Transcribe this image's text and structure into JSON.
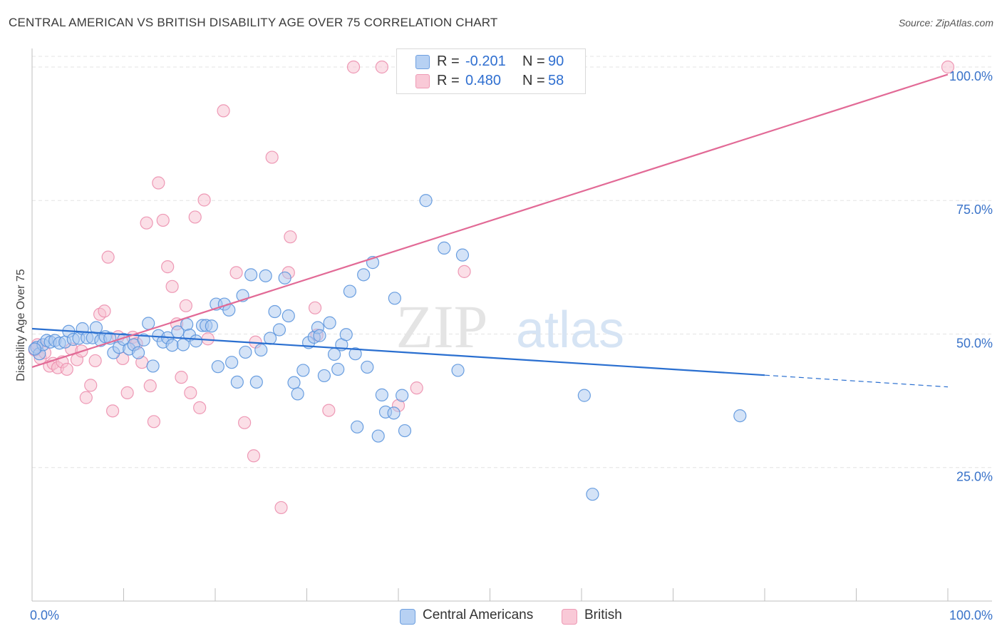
{
  "header": {
    "title": "CENTRAL AMERICAN VS BRITISH DISABILITY AGE OVER 75 CORRELATION CHART",
    "source": "Source: ZipAtlas.com"
  },
  "legend": {
    "rows": [
      {
        "r_label": "R =",
        "r_value": "-0.201",
        "n_label": "N =",
        "n_value": "90"
      },
      {
        "r_label": "R =",
        "r_value": "0.480",
        "n_label": "N =",
        "n_value": "58"
      }
    ]
  },
  "bottom_legend": {
    "items": [
      {
        "label": "Central Americans"
      },
      {
        "label": "British"
      }
    ]
  },
  "watermark": {
    "zip": "ZIP",
    "atlas": "atlas"
  },
  "colors": {
    "blue_fill": "#a9c8f0",
    "blue_stroke": "#5b95dd",
    "blue_line": "#2a6fd0",
    "pink_fill": "#f7bfd0",
    "pink_stroke": "#ec8fae",
    "pink_line": "#e26a96",
    "tick_label": "#3a73c9",
    "grid": "#e3e3e3"
  },
  "chart_data": {
    "type": "scatter",
    "title": "CENTRAL AMERICAN VS BRITISH DISABILITY AGE OVER 75 CORRELATION CHART",
    "xlabel": "",
    "ylabel": "Disability Age Over 75",
    "xlim": [
      0,
      100
    ],
    "ylim": [
      0,
      102
    ],
    "x_tick_labels": [
      "0.0%",
      "100.0%"
    ],
    "y_ticks": [
      25,
      50,
      75,
      100
    ],
    "y_tick_labels": [
      "25.0%",
      "50.0%",
      "75.0%",
      "100.0%"
    ],
    "grid": true,
    "legend_position": "top-center",
    "series": [
      {
        "name": "Central Americans",
        "color": "#a9c8f0",
        "trend": {
          "x": [
            0,
            80,
            100
          ],
          "y": [
            51.0,
            42.3,
            40.1
          ],
          "solid_until": 80
        },
        "points": [
          {
            "x": 0.5,
            "y": 47.5
          },
          {
            "x": 0.8,
            "y": 46.3
          },
          {
            "x": 1.2,
            "y": 48.0
          },
          {
            "x": 1.6,
            "y": 48.8
          },
          {
            "x": 2.0,
            "y": 48.5
          },
          {
            "x": 2.5,
            "y": 48.8
          },
          {
            "x": 3.0,
            "y": 48.3
          },
          {
            "x": 3.6,
            "y": 48.5
          },
          {
            "x": 4.0,
            "y": 50.5
          },
          {
            "x": 4.5,
            "y": 49.0
          },
          {
            "x": 5.1,
            "y": 49.2
          },
          {
            "x": 5.5,
            "y": 51.0
          },
          {
            "x": 6.0,
            "y": 49.3
          },
          {
            "x": 6.6,
            "y": 49.3
          },
          {
            "x": 7.0,
            "y": 51.2
          },
          {
            "x": 7.5,
            "y": 48.8
          },
          {
            "x": 8.0,
            "y": 49.5
          },
          {
            "x": 8.5,
            "y": 49.2
          },
          {
            "x": 8.9,
            "y": 46.5
          },
          {
            "x": 9.5,
            "y": 47.5
          },
          {
            "x": 10.0,
            "y": 49.0
          },
          {
            "x": 10.6,
            "y": 47.2
          },
          {
            "x": 11.1,
            "y": 48.0
          },
          {
            "x": 11.6,
            "y": 46.5
          },
          {
            "x": 12.2,
            "y": 48.9
          },
          {
            "x": 12.7,
            "y": 52.0
          },
          {
            "x": 13.2,
            "y": 44.0
          },
          {
            "x": 13.8,
            "y": 49.7
          },
          {
            "x": 14.3,
            "y": 48.5
          },
          {
            "x": 14.8,
            "y": 49.3
          },
          {
            "x": 15.3,
            "y": 47.9
          },
          {
            "x": 15.9,
            "y": 50.4
          },
          {
            "x": 16.5,
            "y": 48.0
          },
          {
            "x": 16.9,
            "y": 51.8
          },
          {
            "x": 17.2,
            "y": 49.8
          },
          {
            "x": 17.9,
            "y": 48.7
          },
          {
            "x": 18.6,
            "y": 51.6
          },
          {
            "x": 19.0,
            "y": 51.6
          },
          {
            "x": 19.6,
            "y": 51.5
          },
          {
            "x": 20.1,
            "y": 55.6
          },
          {
            "x": 20.3,
            "y": 43.9
          },
          {
            "x": 21.0,
            "y": 55.6
          },
          {
            "x": 21.5,
            "y": 54.5
          },
          {
            "x": 21.8,
            "y": 44.7
          },
          {
            "x": 22.4,
            "y": 41.0
          },
          {
            "x": 23.0,
            "y": 57.2
          },
          {
            "x": 23.3,
            "y": 46.6
          },
          {
            "x": 23.9,
            "y": 61.1
          },
          {
            "x": 24.5,
            "y": 41.0
          },
          {
            "x": 25.0,
            "y": 47.0
          },
          {
            "x": 25.5,
            "y": 60.9
          },
          {
            "x": 26.0,
            "y": 49.2
          },
          {
            "x": 26.5,
            "y": 54.2
          },
          {
            "x": 27.0,
            "y": 50.8
          },
          {
            "x": 27.6,
            "y": 60.5
          },
          {
            "x": 28.0,
            "y": 53.4
          },
          {
            "x": 28.6,
            "y": 40.9
          },
          {
            "x": 29.0,
            "y": 38.8
          },
          {
            "x": 29.6,
            "y": 43.2
          },
          {
            "x": 30.2,
            "y": 48.4
          },
          {
            "x": 30.8,
            "y": 49.4
          },
          {
            "x": 31.2,
            "y": 51.2
          },
          {
            "x": 31.4,
            "y": 49.7
          },
          {
            "x": 31.9,
            "y": 42.2
          },
          {
            "x": 32.5,
            "y": 52.1
          },
          {
            "x": 33.0,
            "y": 46.2
          },
          {
            "x": 33.4,
            "y": 43.4
          },
          {
            "x": 33.8,
            "y": 48.0
          },
          {
            "x": 34.3,
            "y": 49.9
          },
          {
            "x": 34.7,
            "y": 58.0
          },
          {
            "x": 35.3,
            "y": 46.3
          },
          {
            "x": 35.5,
            "y": 32.6
          },
          {
            "x": 36.2,
            "y": 61.1
          },
          {
            "x": 36.6,
            "y": 43.8
          },
          {
            "x": 37.2,
            "y": 63.4
          },
          {
            "x": 37.8,
            "y": 30.9
          },
          {
            "x": 38.2,
            "y": 38.6
          },
          {
            "x": 38.6,
            "y": 35.4
          },
          {
            "x": 39.5,
            "y": 35.2
          },
          {
            "x": 39.6,
            "y": 56.7
          },
          {
            "x": 40.4,
            "y": 38.5
          },
          {
            "x": 40.7,
            "y": 31.9
          },
          {
            "x": 43.0,
            "y": 75.0
          },
          {
            "x": 45.0,
            "y": 66.1
          },
          {
            "x": 46.5,
            "y": 43.2
          },
          {
            "x": 47.0,
            "y": 64.8
          },
          {
            "x": 60.3,
            "y": 38.5
          },
          {
            "x": 61.2,
            "y": 20.0
          },
          {
            "x": 77.3,
            "y": 34.7
          },
          {
            "x": 0.3,
            "y": 47.2
          }
        ]
      },
      {
        "name": "British",
        "color": "#f7bfd0",
        "trend": {
          "x": [
            0,
            100
          ],
          "y": [
            43.8,
            98.6
          ],
          "solid_until": 100
        },
        "points": [
          {
            "x": 0.3,
            "y": 47.0
          },
          {
            "x": 0.9,
            "y": 45.5
          },
          {
            "x": 1.4,
            "y": 46.5
          },
          {
            "x": 1.9,
            "y": 44.0
          },
          {
            "x": 2.3,
            "y": 44.5
          },
          {
            "x": 2.8,
            "y": 43.7
          },
          {
            "x": 3.3,
            "y": 44.8
          },
          {
            "x": 3.8,
            "y": 43.4
          },
          {
            "x": 4.3,
            "y": 47.2
          },
          {
            "x": 4.9,
            "y": 45.2
          },
          {
            "x": 5.4,
            "y": 46.8
          },
          {
            "x": 5.9,
            "y": 38.1
          },
          {
            "x": 6.4,
            "y": 40.4
          },
          {
            "x": 6.9,
            "y": 45.0
          },
          {
            "x": 7.4,
            "y": 53.7
          },
          {
            "x": 7.9,
            "y": 54.3
          },
          {
            "x": 8.3,
            "y": 64.4
          },
          {
            "x": 8.8,
            "y": 35.6
          },
          {
            "x": 9.4,
            "y": 49.5
          },
          {
            "x": 9.9,
            "y": 45.4
          },
          {
            "x": 10.4,
            "y": 39.0
          },
          {
            "x": 11.0,
            "y": 49.4
          },
          {
            "x": 11.4,
            "y": 48.2
          },
          {
            "x": 12.0,
            "y": 44.7
          },
          {
            "x": 12.5,
            "y": 70.8
          },
          {
            "x": 12.9,
            "y": 40.3
          },
          {
            "x": 13.3,
            "y": 33.6
          },
          {
            "x": 13.8,
            "y": 78.3
          },
          {
            "x": 14.3,
            "y": 71.3
          },
          {
            "x": 14.8,
            "y": 62.6
          },
          {
            "x": 15.3,
            "y": 58.9
          },
          {
            "x": 15.8,
            "y": 51.9
          },
          {
            "x": 16.3,
            "y": 41.9
          },
          {
            "x": 16.8,
            "y": 55.3
          },
          {
            "x": 17.3,
            "y": 39.0
          },
          {
            "x": 17.8,
            "y": 71.9
          },
          {
            "x": 18.3,
            "y": 36.2
          },
          {
            "x": 18.8,
            "y": 75.1
          },
          {
            "x": 19.2,
            "y": 49.1
          },
          {
            "x": 20.9,
            "y": 91.8
          },
          {
            "x": 22.3,
            "y": 61.5
          },
          {
            "x": 23.2,
            "y": 33.4
          },
          {
            "x": 24.2,
            "y": 27.2
          },
          {
            "x": 24.4,
            "y": 48.5
          },
          {
            "x": 26.2,
            "y": 83.1
          },
          {
            "x": 27.2,
            "y": 17.5
          },
          {
            "x": 28.0,
            "y": 61.5
          },
          {
            "x": 28.2,
            "y": 68.2
          },
          {
            "x": 30.9,
            "y": 54.9
          },
          {
            "x": 31.1,
            "y": 49.8
          },
          {
            "x": 32.4,
            "y": 35.7
          },
          {
            "x": 35.1,
            "y": 100.0
          },
          {
            "x": 38.2,
            "y": 100.0
          },
          {
            "x": 40.0,
            "y": 36.6
          },
          {
            "x": 42.0,
            "y": 39.9
          },
          {
            "x": 47.2,
            "y": 61.7
          },
          {
            "x": 100.0,
            "y": 100.0
          },
          {
            "x": 0.6,
            "y": 48.0
          }
        ]
      }
    ]
  }
}
